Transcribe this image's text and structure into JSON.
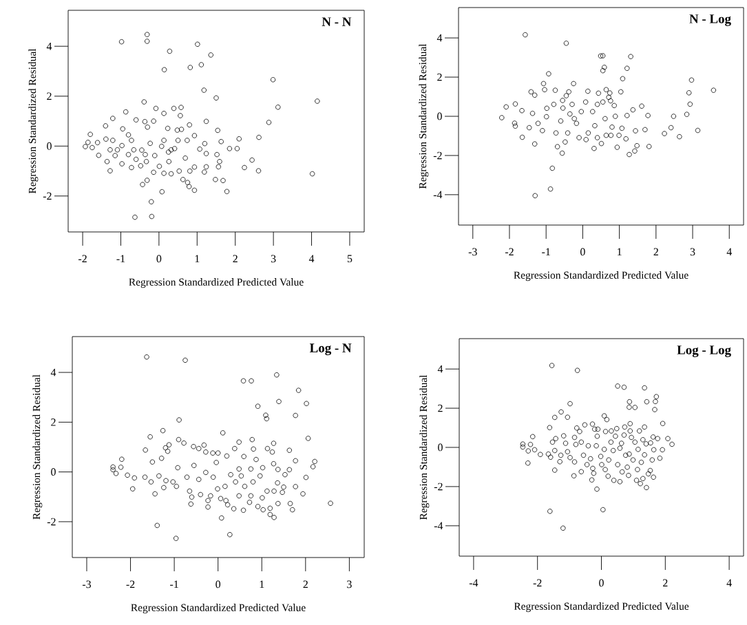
{
  "chart_data": [
    {
      "type": "scatter",
      "title": "N - N",
      "xlabel": "Regression Standardized Predicted Value",
      "ylabel": "Regression Standardized Residual",
      "color": "#000000",
      "marker": "circle",
      "xlim": [
        -2.38,
        5.38
      ],
      "ylim": [
        -3.44,
        5.44
      ],
      "xticks": [
        -2,
        -1,
        0,
        1,
        2,
        3,
        4,
        5
      ],
      "yticks": [
        -2,
        0,
        2,
        4
      ],
      "x": [
        -0.31,
        -0.31,
        -0.98,
        1.01,
        0.28,
        1.36,
        1.11,
        0.82,
        0.14,
        2.99,
        1.18,
        1.5,
        4.15,
        3.12,
        -0.39,
        2.88,
        2.62,
        2.1,
        1.85,
        2.05,
        2.44,
        2.24,
        2.61,
        4.02,
        1.78,
        1.68,
        0.93,
        0.08,
        -0.2,
        -0.19,
        -0.63,
        -0.43,
        -0.08,
        0.58,
        0.39,
        -0.87,
        0.13,
        -1.21,
        0.56,
        1.24,
        1.54,
        1.63,
        1.2,
        1.07,
        1.24,
        1.52,
        1.59,
        1.56,
        1.48,
        1.24,
        1.19,
        0.8,
        0.93,
        0.74,
        -1.8,
        -1.86,
        -1.93,
        -1.61,
        -1.75,
        -1.58,
        -1.4,
        -1.39,
        -1.28,
        -1.36,
        -0.95,
        -0.8,
        -0.6,
        -0.37,
        -0.14,
        -0.3,
        0.23,
        0.48,
        0.59,
        -0.97,
        -0.66,
        -0.45,
        -0.23,
        0.07,
        0.32,
        0.41,
        -1.15,
        -0.97,
        -0.72,
        -0.48,
        -0.33,
        -0.14,
        0.01,
        0.13,
        0.32,
        0.53,
        0.63,
        0.79,
        0.75,
        0.81,
        0.93,
        0.69,
        0.5,
        0.13,
        -0.72,
        -1.09,
        -1.21,
        -0.11,
        -0.36,
        -0.6,
        -0.8,
        0.25,
        -0.31,
        0.26,
        -1.28
      ],
      "values": [
        4.47,
        4.2,
        4.18,
        4.08,
        3.8,
        3.65,
        3.26,
        3.15,
        3.06,
        2.66,
        2.24,
        1.93,
        1.8,
        1.56,
        1.77,
        0.95,
        0.35,
        0.29,
        -0.1,
        -0.1,
        -0.56,
        -0.86,
        -0.99,
        -1.11,
        -1.82,
        -1.38,
        -1.77,
        -1.83,
        -2.23,
        -2.82,
        -2.85,
        -1.54,
        1.51,
        1.55,
        1.51,
        1.37,
        1.31,
        1.11,
        1.22,
        0.99,
        0.63,
        0.18,
        0.1,
        -0.12,
        -0.3,
        -0.34,
        -0.62,
        -0.83,
        -1.34,
        -0.83,
        -1.04,
        0.85,
        0.42,
        0.23,
        0.47,
        0.15,
        -0.02,
        0.14,
        -0.06,
        -0.37,
        0.81,
        0.28,
        -0.99,
        -0.62,
        0.69,
        0.45,
        1.05,
        0.98,
        1.0,
        0.76,
        0.71,
        0.64,
        0.67,
        0.02,
        -0.15,
        -0.16,
        0.11,
        -0.01,
        -0.15,
        -0.1,
        -0.38,
        -0.71,
        -0.86,
        -0.79,
        -0.62,
        -1.05,
        -0.81,
        -1.09,
        -1.11,
        -1.0,
        -1.34,
        -1.62,
        -1.46,
        -1.0,
        -0.84,
        -0.48,
        0.23,
        0.23,
        0.23,
        -0.15,
        0.23,
        -0.38,
        -0.34,
        -0.53,
        -0.34,
        -0.24,
        -1.37,
        -0.62,
        -0.15
      ]
    },
    {
      "type": "scatter",
      "title": "N - Log",
      "xlabel": "Regression Standardized Predicted Value",
      "ylabel": "Regression Standardized Residual",
      "color": "#000000",
      "marker": "circle",
      "xlim": [
        -3.39,
        4.39
      ],
      "ylim": [
        -5.55,
        5.55
      ],
      "xticks": [
        -3,
        -2,
        -1,
        0,
        1,
        2,
        3,
        4
      ],
      "yticks": [
        -4,
        -2,
        0,
        2,
        4
      ],
      "x": [
        -1.57,
        -0.45,
        0.49,
        0.55,
        1.31,
        0.59,
        0.55,
        1.21,
        1.09,
        2.97,
        3.57,
        2.9,
        2.93,
        2.84,
        2.48,
        2.41,
        2.23,
        2.64,
        3.14,
        -0.93,
        -0.25,
        -1.07,
        0.14,
        -2.21,
        -2.09,
        -1.84,
        -1.86,
        -1.84,
        -1.65,
        -1.31,
        -1.3,
        -0.88,
        -0.83,
        -0.56,
        -0.69,
        -0.48,
        0.31,
        0.94,
        1.27,
        1.42,
        1.48,
        1.81,
        1.7,
        1.44,
        1.61,
        1.78,
        1.37,
        1.04,
        0.74,
        0.64,
        0.43,
        -0.55,
        -0.75,
        -1.41,
        -1.31,
        -1.04,
        -0.45,
        -0.38,
        -1.46,
        -1.66,
        -1.37,
        -1.22,
        -1.1,
        -0.99,
        -0.98,
        -0.79,
        -0.73,
        -0.6,
        -0.41,
        -0.29,
        -0.17,
        -0.1,
        -0.04,
        0.08,
        0.15,
        0.09,
        0.27,
        0.33,
        0.4,
        0.4,
        0.51,
        0.55,
        0.61,
        0.64,
        0.71,
        0.77,
        0.8,
        0.89,
        0.99,
        1.07,
        1.18,
        1.21,
        0.86,
        0.76,
        -0.23,
        -0.35,
        -0.54
      ],
      "values": [
        4.16,
        3.73,
        3.08,
        3.09,
        3.05,
        2.5,
        2.33,
        2.45,
        1.92,
        1.85,
        1.33,
        1.2,
        0.62,
        0.1,
        0.0,
        -0.58,
        -0.88,
        -1.04,
        -0.72,
        2.17,
        1.67,
        1.67,
        1.28,
        -0.07,
        0.48,
        0.63,
        -0.35,
        -0.5,
        -1.07,
        -1.41,
        -4.05,
        -3.71,
        -2.65,
        -1.88,
        -1.55,
        -1.31,
        -1.64,
        -1.58,
        -1.95,
        -1.77,
        -1.5,
        -1.54,
        -0.68,
        -0.74,
        0.52,
        0.04,
        0.33,
        1.25,
        1.19,
        1.36,
        1.18,
        0.81,
        1.33,
        1.25,
        1.08,
        1.36,
        1.05,
        1.25,
        -0.58,
        0.29,
        0.15,
        -0.36,
        -0.73,
        -0.02,
        0.41,
        0.61,
        -0.85,
        -0.24,
        -0.85,
        0.61,
        -0.36,
        -1.09,
        0.24,
        0.73,
        -0.85,
        -1.19,
        0.24,
        -0.48,
        0.61,
        -1.09,
        -1.39,
        0.73,
        -0.12,
        -0.97,
        0.97,
        -0.97,
        -0.55,
        0.0,
        -0.97,
        -0.61,
        -1.15,
        0.04,
        0.55,
        0.79,
        -0.12,
        0.12,
        0.42
      ]
    },
    {
      "type": "scatter",
      "title": "Log - N",
      "xlabel": "Regression Standardized Predicted Value",
      "ylabel": "Regression Standardized Residual",
      "color": "#000000",
      "marker": "circle",
      "xlim": [
        -3.33,
        3.34
      ],
      "ylim": [
        -3.44,
        5.44
      ],
      "xticks": [
        -3,
        -2,
        -1,
        0,
        1,
        2,
        3
      ],
      "yticks": [
        -2,
        0,
        2,
        4
      ],
      "x": [
        -1.63,
        -0.75,
        1.34,
        0.58,
        0.76,
        1.84,
        1.39,
        2.02,
        0.91,
        1.09,
        1.11,
        1.77,
        -0.89,
        -1.26,
        -1.55,
        0.11,
        2.06,
        2.21,
        2.17,
        2.57,
        2.01,
        1.94,
        1.77,
        1.7,
        1.65,
        1.28,
        1.19,
        1.19,
        1.37,
        1.03,
        0.91,
        1.01,
        0.58,
        0.36,
        0.08,
        0.27,
        -0.96,
        -1.39,
        -1.44,
        -1.95,
        -1.91,
        -2.07,
        -2.2,
        -2.4,
        -2.4,
        -2.33,
        -2.22,
        -1.66,
        -1.5,
        -1.29,
        -1.15,
        -1.12,
        -1.2,
        -0.9,
        -0.78,
        -0.56,
        -0.32,
        -0.28,
        -0.44,
        -0.12,
        0.0,
        0.2,
        0.38,
        0.48,
        0.78,
        0.81,
        1.13,
        1.27,
        1.24,
        0.87,
        0.59,
        1.02,
        1.27,
        1.37,
        1.63,
        1.77,
        1.63,
        1.53,
        -1.67,
        -1.53,
        -1.35,
        -1.24,
        -1.19,
        -1.03,
        -0.95,
        -0.92,
        -0.71,
        -0.65,
        -0.6,
        -0.62,
        -0.55,
        -0.44,
        -0.4,
        -0.28,
        -0.23,
        -0.23,
        -0.17,
        -0.11,
        -0.04,
        -0.01,
        0.06,
        0.16,
        0.18,
        0.22,
        0.29,
        0.4,
        0.48,
        0.53,
        0.61,
        0.72,
        0.75,
        0.8,
        0.75,
        0.48,
        0.96,
        1.12,
        1.28,
        1.36,
        1.47,
        1.5
      ],
      "values": [
        4.62,
        4.49,
        3.9,
        3.66,
        3.66,
        3.28,
        2.83,
        2.75,
        2.64,
        2.28,
        2.14,
        2.27,
        2.09,
        1.66,
        1.41,
        1.57,
        1.35,
        0.42,
        0.21,
        -1.26,
        -0.22,
        -0.88,
        -0.59,
        -1.52,
        -1.27,
        -1.83,
        -1.71,
        -1.46,
        -1.27,
        -1.52,
        -1.39,
        -1.04,
        -1.54,
        -1.48,
        -1.85,
        -2.52,
        -2.67,
        -2.15,
        -0.88,
        -0.68,
        -0.24,
        -0.13,
        0.51,
        0.2,
        0.09,
        -0.06,
        0.19,
        0.88,
        0.4,
        0.55,
        0.83,
        1.09,
        0.97,
        1.3,
        1.16,
        1.02,
        1.08,
        0.8,
        0.94,
        0.76,
        0.76,
        0.64,
        0.94,
        1.2,
        1.3,
        0.92,
        0.94,
        1.15,
        0.8,
        0.5,
        0.62,
        0.17,
        0.33,
        0.1,
        0.87,
        0.45,
        0.09,
        -0.11,
        -0.21,
        -0.4,
        -0.16,
        -0.63,
        -0.35,
        -0.4,
        -0.58,
        0.17,
        -0.21,
        -0.77,
        -1.01,
        -1.29,
        0.26,
        -0.3,
        -0.91,
        -0.02,
        -1.15,
        -1.41,
        -0.96,
        -0.21,
        0.38,
        -0.68,
        -1.07,
        -0.58,
        -1.15,
        -1.32,
        -0.11,
        -0.4,
        -0.96,
        -0.16,
        -0.58,
        -1.22,
        -0.96,
        -0.4,
        0.12,
        0.12,
        -0.16,
        -0.77,
        -0.77,
        -0.44,
        -0.82,
        -0.61
      ]
    },
    {
      "type": "scatter",
      "title": "Log - Log",
      "xlabel": "Regression Standardized Predicted Value",
      "ylabel": "Regression Standardized Residual",
      "color": "#000000",
      "marker": "circle",
      "xlim": [
        -4.45,
        4.45
      ],
      "ylim": [
        -5.55,
        5.55
      ],
      "xticks": [
        -4,
        -2,
        0,
        2,
        4
      ],
      "yticks": [
        -4,
        -2,
        0,
        2,
        4
      ],
      "x": [
        -1.55,
        -0.75,
        0.51,
        0.71,
        1.35,
        1.72,
        1.69,
        1.42,
        0.88,
        0.87,
        1.05,
        1.67,
        -0.98,
        -1.26,
        -1.46,
        -1.06,
        0.09,
        0.17,
        1.92,
        0.9,
        1.35,
        -1.62,
        -0.28,
        2.08,
        2.21,
        1.91,
        1.76,
        1.62,
        1.64,
        1.83,
        1.59,
        1.53,
        1.63,
        1.47,
        1.41,
        1.22,
        1.3,
        1.1,
        1.13,
        0.85,
        0.58,
        0.39,
        0.21,
        -0.14,
        -0.3,
        -0.24,
        0.05,
        -1.61,
        -1.2,
        -0.86,
        -0.63,
        -1.46,
        -2.3,
        -2.46,
        -2.46,
        -2.22,
        -2.15,
        -2.29,
        -2.09,
        -1.91,
        -1.66,
        -1.59,
        -1.43,
        -1.53,
        -1.46,
        -1.27,
        -1.3,
        -1.18,
        -1.12,
        -1.06,
        -0.98,
        -0.84,
        -0.84,
        -0.8,
        -0.77,
        -0.68,
        -0.63,
        -0.56,
        -0.52,
        -0.45,
        -0.41,
        -0.34,
        -0.27,
        -0.21,
        -0.11,
        -0.16,
        -0.13,
        -0.02,
        0.01,
        0.09,
        0.12,
        0.13,
        0.23,
        0.3,
        0.31,
        0.37,
        0.44,
        0.48,
        0.51,
        0.58,
        0.63,
        0.65,
        0.71,
        0.73,
        0.76,
        0.81,
        0.87,
        0.9,
        0.94,
        0.99,
        1.05,
        1.15,
        1.19,
        1.25,
        1.3,
        1.35,
        1.4,
        1.54
      ],
      "values": [
        4.18,
        3.93,
        3.13,
        3.07,
        3.04,
        2.59,
        2.34,
        2.33,
        2.33,
        2.05,
        2.04,
        1.93,
        2.23,
        1.81,
        1.53,
        1.54,
        1.61,
        1.42,
        1.22,
        1.21,
        1.04,
        1.01,
        1.19,
        0.45,
        0.16,
        -0.12,
        0.45,
        0.53,
        -0.12,
        -0.55,
        -0.64,
        -1.18,
        -1.52,
        -1.35,
        -2.05,
        -1.85,
        -1.59,
        -1.68,
        -1.13,
        -1.43,
        -1.75,
        -1.68,
        -1.47,
        -2.13,
        -1.66,
        -1.32,
        -3.18,
        -3.26,
        -4.12,
        -1.45,
        -1.24,
        -1.16,
        -0.8,
        0.17,
        0.02,
        0.15,
        0.55,
        -0.18,
        -0.12,
        -0.36,
        -0.34,
        -0.5,
        0.45,
        0.27,
        -0.16,
        -0.4,
        -0.73,
        0.59,
        0.21,
        -0.22,
        -0.52,
        0.51,
        -0.74,
        0.15,
        0.99,
        0.81,
        0.27,
        -0.4,
        1.15,
        -0.88,
        0.08,
        -0.58,
        -1.07,
        0.93,
        0.93,
        0.08,
        0.57,
        -0.46,
        -0.88,
        -0.1,
        -1.13,
        0.81,
        -0.64,
        0.27,
        0.84,
        -0.16,
        0.57,
        0.96,
        -0.88,
        -0.04,
        0.21,
        -1.25,
        0.63,
        1.04,
        -0.4,
        -1.01,
        -0.34,
        0.84,
        0.51,
        -0.64,
        0.27,
        -0.1,
        0.84,
        -0.76,
        0.39,
        -0.38,
        0.18,
        0.23
      ]
    }
  ]
}
